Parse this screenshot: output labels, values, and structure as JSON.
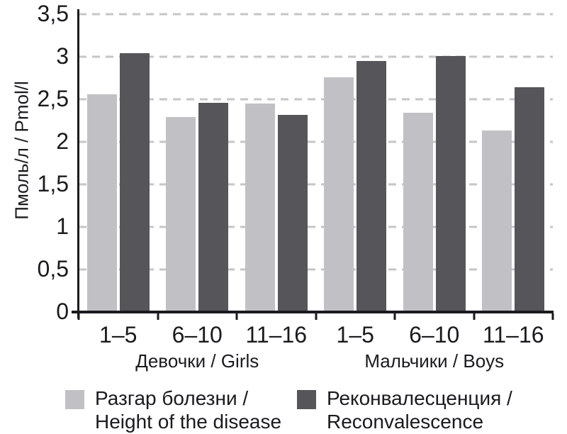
{
  "chart_data": {
    "type": "bar",
    "title": "",
    "ylabel": "Пмоль/л / Pmol/l",
    "xlabel": "",
    "ylim": [
      0,
      3.5
    ],
    "ytick_values": [
      0,
      0.5,
      1,
      1.5,
      2,
      2.5,
      3,
      3.5
    ],
    "ytick_labels": [
      "0",
      "0,5",
      "1",
      "1,5",
      "2",
      "2,5",
      "3",
      "3,5"
    ],
    "grid": "dashed horizontal gridlines every 0.5",
    "legend_position": "bottom",
    "axis_color": "#1a1a1f",
    "gridline_color": "#c6c6c6",
    "sections": [
      {
        "label": "Девочки / Girls",
        "categories": [
          "1–5",
          "6–10",
          "11–16"
        ]
      },
      {
        "label": "Мальчики / Boys",
        "categories": [
          "1–5",
          "6–10",
          "11–16"
        ]
      }
    ],
    "series": [
      {
        "name": "Разгар болезни / Height of the disease",
        "color": "#c1c1c5",
        "values": [
          2.56,
          2.29,
          2.45,
          2.76,
          2.34,
          2.13
        ]
      },
      {
        "name": "Реконвалесценция / Reconvalescence",
        "color": "#56565a",
        "values": [
          3.04,
          2.46,
          2.32,
          2.95,
          3.01,
          2.64
        ]
      }
    ],
    "legend": [
      {
        "line1": "Разгар болезни /",
        "line2": "Height of the disease",
        "color": "#c1c1c5"
      },
      {
        "line1": "Реконвалесценция /",
        "line2": "Reconvalescence",
        "color": "#56565a"
      }
    ]
  }
}
